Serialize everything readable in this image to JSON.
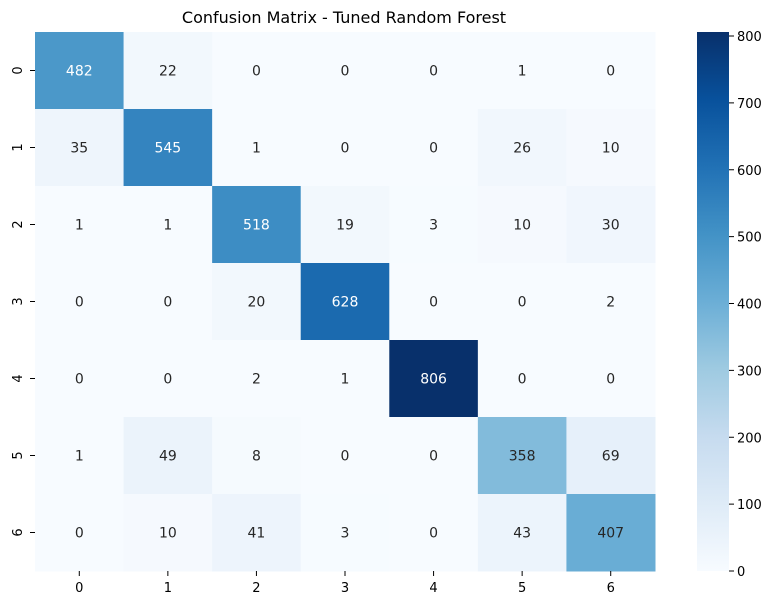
{
  "chart_data": {
    "type": "heatmap",
    "title": "Confusion Matrix - Tuned Random Forest",
    "xlabel": "",
    "ylabel": "",
    "x_categories": [
      "0",
      "1",
      "2",
      "3",
      "4",
      "5",
      "6"
    ],
    "y_categories": [
      "0",
      "1",
      "2",
      "3",
      "4",
      "5",
      "6"
    ],
    "matrix": [
      [
        482,
        22,
        0,
        0,
        0,
        1,
        0
      ],
      [
        35,
        545,
        1,
        0,
        0,
        26,
        10
      ],
      [
        1,
        1,
        518,
        19,
        3,
        10,
        30
      ],
      [
        0,
        0,
        20,
        628,
        0,
        0,
        2
      ],
      [
        0,
        0,
        2,
        1,
        806,
        0,
        0
      ],
      [
        1,
        49,
        8,
        0,
        0,
        358,
        69
      ],
      [
        0,
        10,
        41,
        3,
        0,
        43,
        407
      ]
    ],
    "colormap": "Blues",
    "colorbar": {
      "min": 0,
      "max": 806,
      "ticks": [
        0,
        100,
        200,
        300,
        400,
        500,
        600,
        700,
        800
      ]
    },
    "grid": false,
    "legend": "colorbar-right"
  }
}
